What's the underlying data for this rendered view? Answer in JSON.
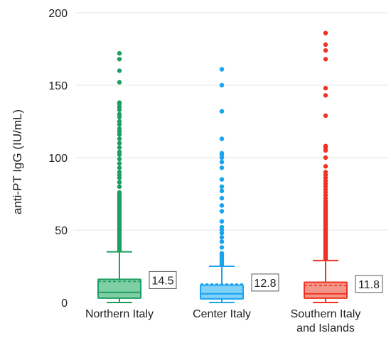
{
  "chart_data": {
    "type": "box",
    "ylabel": "anti-PT IgG (IU/mL)",
    "xlabel": "",
    "ylim": [
      0,
      200
    ],
    "yticks": [
      0,
      50,
      100,
      150,
      200
    ],
    "grid": true,
    "series": [
      {
        "name": "Northern Italy",
        "label_lines": [
          "Northern Italy"
        ],
        "color": "#1e9e62",
        "fill": "#7fcfa5",
        "q1": 3,
        "median": 7,
        "q3": 16,
        "mean": 14.5,
        "whisker_low": 0,
        "whisker_high": 35,
        "outliers": [
          36,
          37,
          38,
          39,
          40,
          41,
          42,
          43,
          44,
          45,
          46,
          47,
          48,
          49,
          50,
          51,
          52,
          53,
          54,
          55,
          56,
          57,
          58,
          59,
          60,
          61,
          62,
          63,
          64,
          65,
          66,
          67,
          68,
          69,
          70,
          71,
          72,
          73,
          74,
          75,
          76,
          80,
          83,
          86,
          88,
          90,
          93,
          96,
          99,
          102,
          104,
          107,
          110,
          113,
          116,
          118,
          120,
          123,
          125,
          128,
          130,
          133,
          135,
          137,
          138,
          152,
          160,
          168,
          172
        ],
        "mean_label": "14.5"
      },
      {
        "name": "Center Italy",
        "label_lines": [
          "Center Italy"
        ],
        "color": "#1aa3ee",
        "fill": "#7fd0f7",
        "q1": 2.5,
        "median": 6,
        "q3": 12,
        "mean": 12.8,
        "whisker_low": 0,
        "whisker_high": 25,
        "outliers": [
          26,
          27,
          28,
          29,
          30,
          31,
          32,
          33,
          34,
          38,
          42,
          45,
          48,
          50,
          52,
          56,
          63,
          67,
          72,
          77,
          80,
          85,
          93,
          97,
          100,
          102,
          103,
          113,
          132,
          150,
          161
        ],
        "mean_label": "12.8"
      },
      {
        "name": "Southern Italy and Islands",
        "label_lines": [
          "Southern Italy",
          "and Islands"
        ],
        "color": "#ee3322",
        "fill": "#f4958a",
        "q1": 3,
        "median": 6,
        "q3": 14,
        "mean": 11.8,
        "whisker_low": 0,
        "whisker_high": 29,
        "outliers": [
          30,
          31,
          32,
          33,
          34,
          35,
          36,
          37,
          38,
          39,
          40,
          41,
          42,
          43,
          44,
          45,
          46,
          47,
          48,
          49,
          50,
          51,
          52,
          53,
          54,
          55,
          56,
          57,
          58,
          59,
          60,
          61,
          62,
          63,
          64,
          65,
          66,
          67,
          68,
          69,
          70,
          72,
          74,
          76,
          78,
          80,
          82,
          84,
          86,
          88,
          90,
          94,
          100,
          105,
          107,
          108,
          129,
          143,
          148,
          168,
          174,
          178,
          186
        ],
        "mean_label": "11.8"
      }
    ]
  }
}
